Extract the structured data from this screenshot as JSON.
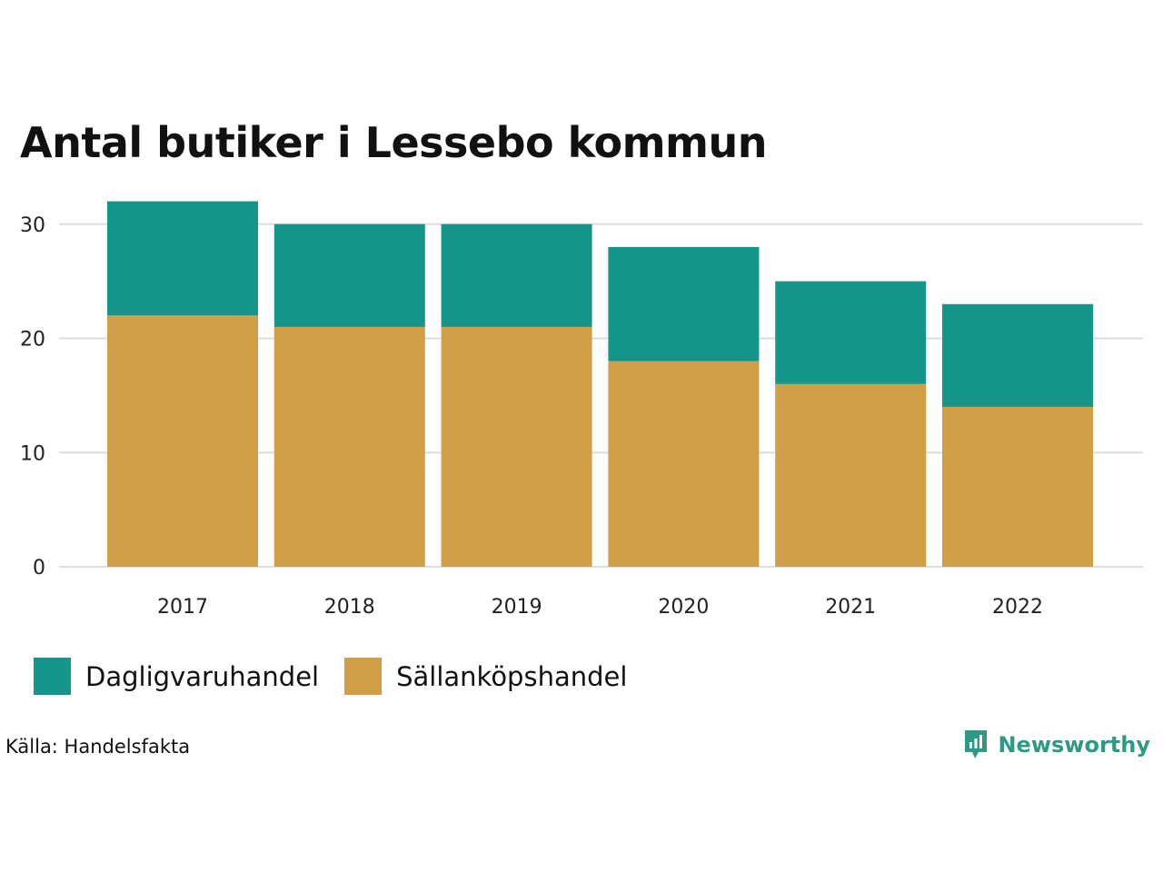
{
  "title": "Antal butiker i Lessebo kommun",
  "chart_data": {
    "type": "bar",
    "stacked": true,
    "title": "Antal butiker i Lessebo kommun",
    "categories": [
      "2017",
      "2018",
      "2019",
      "2020",
      "2021",
      "2022"
    ],
    "series": [
      {
        "name": "Sällanköpshandel",
        "color": "#d19f48",
        "values": [
          22,
          21,
          21,
          18,
          16,
          14
        ]
      },
      {
        "name": "Dagligvaruhandel",
        "color": "#16968a",
        "values": [
          10,
          9,
          9,
          10,
          9,
          9
        ]
      }
    ],
    "yticks": [
      0,
      10,
      20,
      30
    ],
    "ylim": [
      0,
      32
    ],
    "grid": true,
    "xlabel": "",
    "ylabel": "",
    "legend_position": "bottom-left"
  },
  "legend": [
    {
      "label": "Dagligvaruhandel",
      "color": "#16968a"
    },
    {
      "label": "Sällanköpshandel",
      "color": "#d19f48"
    }
  ],
  "source": "Källa: Handelsfakta",
  "brand": {
    "name": "Newsworthy",
    "icon": "newsworthy-logo-icon",
    "color": "#2e9a86"
  }
}
